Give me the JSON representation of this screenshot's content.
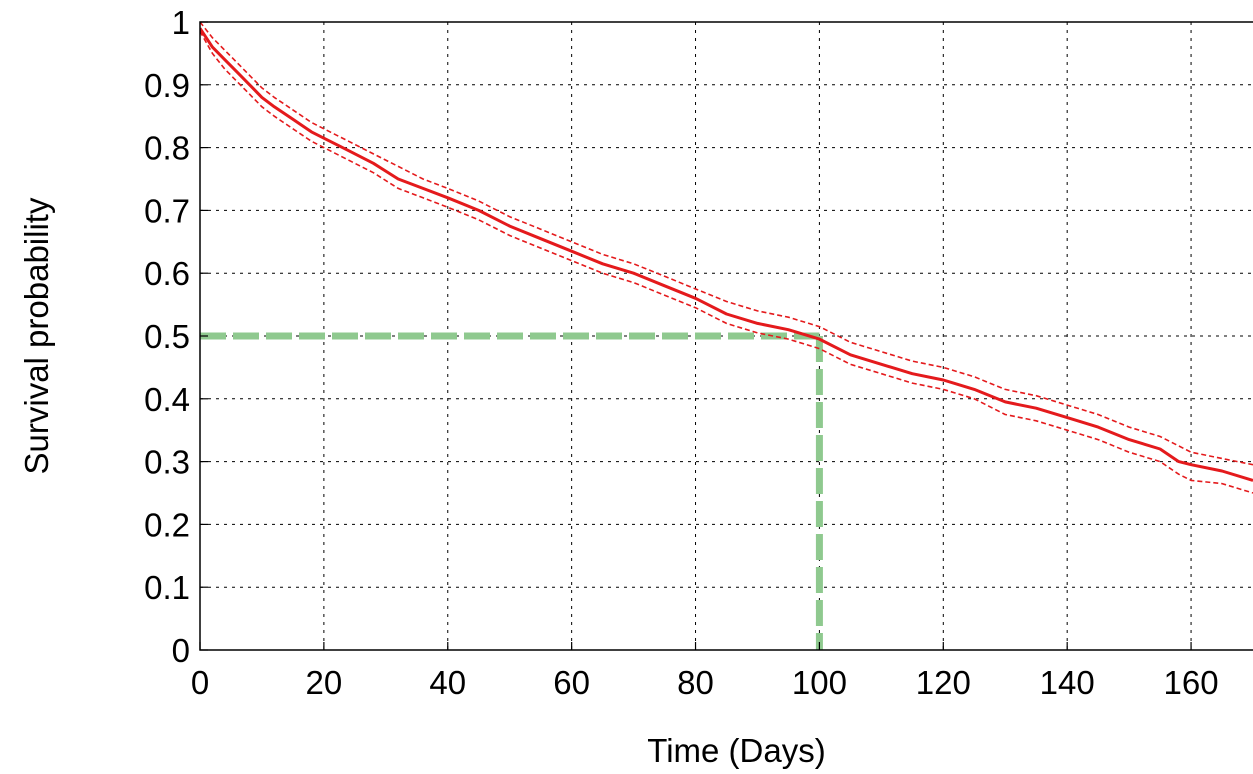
{
  "chart_data": {
    "type": "line",
    "xlabel": "Time (Days)",
    "ylabel": "Survival probability",
    "xlim": [
      0,
      170
    ],
    "ylim": [
      0,
      1
    ],
    "x_ticks": [
      0,
      20,
      40,
      60,
      80,
      100,
      120,
      140,
      160
    ],
    "y_ticks": [
      0,
      0.1,
      0.2,
      0.3,
      0.4,
      0.5,
      0.6,
      0.7,
      0.8,
      0.9,
      1
    ],
    "y_tick_labels": [
      "0",
      "0.1",
      "0.2",
      "0.3",
      "0.4",
      "0.5",
      "0.6",
      "0.7",
      "0.8",
      "0.9",
      "1"
    ],
    "grid": true,
    "series": [
      {
        "style": "solid",
        "color": "#e41a1c",
        "x": [
          0,
          2,
          4,
          6,
          8,
          10,
          12,
          15,
          18,
          20,
          24,
          28,
          32,
          36,
          40,
          45,
          50,
          55,
          60,
          65,
          70,
          75,
          80,
          85,
          90,
          95,
          100,
          105,
          110,
          115,
          120,
          125,
          130,
          135,
          140,
          145,
          150,
          155,
          158,
          160,
          165,
          170
        ],
        "y": [
          0.99,
          0.96,
          0.94,
          0.92,
          0.9,
          0.88,
          0.865,
          0.845,
          0.825,
          0.815,
          0.795,
          0.775,
          0.75,
          0.735,
          0.72,
          0.7,
          0.675,
          0.655,
          0.635,
          0.615,
          0.6,
          0.58,
          0.56,
          0.535,
          0.52,
          0.51,
          0.495,
          0.47,
          0.455,
          0.44,
          0.43,
          0.415,
          0.395,
          0.385,
          0.37,
          0.355,
          0.335,
          0.32,
          0.3,
          0.295,
          0.285,
          0.27
        ]
      },
      {
        "style": "dashed",
        "color": "#e41a1c",
        "x": [
          0,
          2,
          4,
          6,
          8,
          10,
          12,
          15,
          18,
          20,
          24,
          28,
          32,
          36,
          40,
          45,
          50,
          55,
          60,
          65,
          70,
          75,
          80,
          85,
          90,
          95,
          100,
          105,
          110,
          115,
          120,
          125,
          130,
          135,
          140,
          145,
          150,
          155,
          158,
          160,
          165,
          170
        ],
        "y": [
          1.0,
          0.975,
          0.955,
          0.935,
          0.915,
          0.895,
          0.88,
          0.86,
          0.84,
          0.83,
          0.81,
          0.79,
          0.77,
          0.75,
          0.735,
          0.715,
          0.69,
          0.67,
          0.65,
          0.63,
          0.615,
          0.595,
          0.575,
          0.555,
          0.54,
          0.53,
          0.515,
          0.49,
          0.475,
          0.46,
          0.45,
          0.435,
          0.415,
          0.405,
          0.39,
          0.375,
          0.355,
          0.34,
          0.325,
          0.315,
          0.305,
          0.295
        ]
      },
      {
        "style": "dashed",
        "color": "#e41a1c",
        "x": [
          0,
          2,
          4,
          6,
          8,
          10,
          12,
          15,
          18,
          20,
          24,
          28,
          32,
          36,
          40,
          45,
          50,
          55,
          60,
          65,
          70,
          75,
          80,
          85,
          90,
          95,
          100,
          105,
          110,
          115,
          120,
          125,
          130,
          135,
          140,
          145,
          150,
          155,
          158,
          160,
          165,
          170
        ],
        "y": [
          0.985,
          0.95,
          0.925,
          0.905,
          0.885,
          0.865,
          0.85,
          0.83,
          0.81,
          0.8,
          0.78,
          0.76,
          0.735,
          0.72,
          0.705,
          0.685,
          0.66,
          0.64,
          0.62,
          0.6,
          0.585,
          0.565,
          0.545,
          0.52,
          0.505,
          0.495,
          0.48,
          0.455,
          0.44,
          0.425,
          0.415,
          0.4,
          0.375,
          0.365,
          0.35,
          0.335,
          0.315,
          0.3,
          0.28,
          0.27,
          0.265,
          0.25
        ]
      }
    ],
    "annotation": {
      "style": "dashed",
      "color": "#8fc98f",
      "median_time": 100,
      "median_probability": 0.5
    }
  }
}
